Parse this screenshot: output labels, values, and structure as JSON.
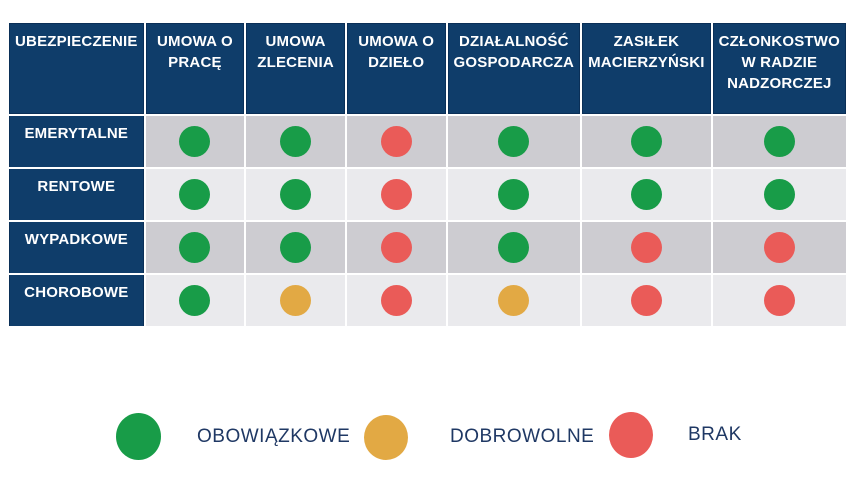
{
  "colors": {
    "header_bg": "#0f3d6a",
    "header_border": "#0a2f57",
    "row_dark": "#cdccd1",
    "row_light": "#eaeaed",
    "header_text": "#ffffff",
    "legend_text": "#1f3864",
    "status": {
      "mandatory": "#189c48",
      "voluntary": "#e2a944",
      "none": "#ea5b58"
    }
  },
  "chart_data": {
    "type": "table",
    "title": "",
    "corner_header": "UBEZPIECZENIE",
    "columns": [
      "UMOWA O PRACĘ",
      "UMOWA ZLECENIA",
      "UMOWA O DZIEŁO",
      "DZIAŁALNOŚĆ GOSPODARCZA",
      "ZASIŁEK MACIERZYŃSKI",
      "CZŁONKOSTWO W RADZIE NADZORCZEJ"
    ],
    "rows": [
      {
        "label": "EMERYTALNE",
        "statuses": [
          "mandatory",
          "mandatory",
          "none",
          "mandatory",
          "mandatory",
          "mandatory"
        ]
      },
      {
        "label": "RENTOWE",
        "statuses": [
          "mandatory",
          "mandatory",
          "none",
          "mandatory",
          "mandatory",
          "mandatory"
        ]
      },
      {
        "label": "WYPADKOWE",
        "statuses": [
          "mandatory",
          "mandatory",
          "none",
          "mandatory",
          "none",
          "none"
        ]
      },
      {
        "label": "CHOROBOWE",
        "statuses": [
          "mandatory",
          "voluntary",
          "none",
          "voluntary",
          "none",
          "none"
        ]
      }
    ],
    "legend_position": "bottom"
  },
  "legend": [
    {
      "label": "OBOWIĄZKOWE",
      "status": "mandatory"
    },
    {
      "label": "DOBROWOLNE",
      "status": "voluntary"
    },
    {
      "label": "BRAK",
      "status": "none"
    }
  ]
}
